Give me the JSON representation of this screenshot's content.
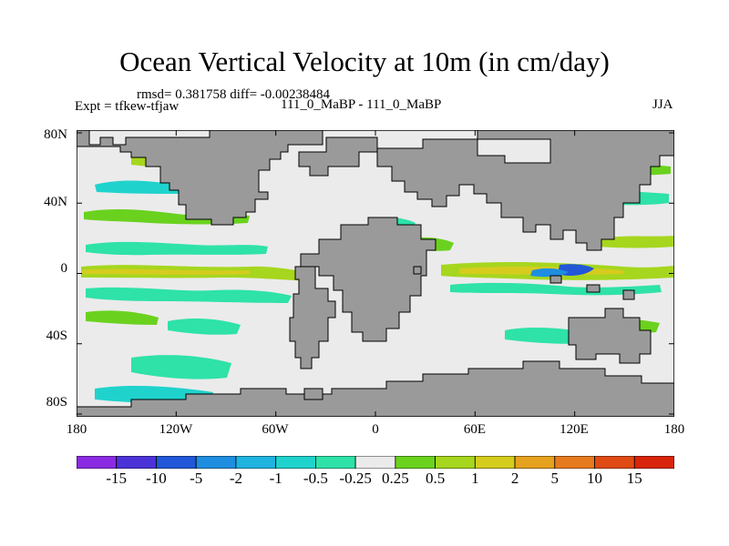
{
  "title": "Ocean Vertical Velocity at 10m (in cm/day)",
  "stats_text": "rmsd= 0.381758 diff= -0.00238484",
  "experiment_text": "Expt = tfkew-tfjaw",
  "runs_text": "111_0_MaBP - 111_0_MaBP",
  "season": "JJA",
  "map": {
    "x_ticks": [
      "180",
      "120W",
      "60W",
      "0",
      "60E",
      "120E",
      "180"
    ],
    "y_ticks": [
      "80N",
      "40N",
      "0",
      "40S",
      "80S"
    ],
    "land_color": "#9a9a9a",
    "ocean_near_zero_color": "#ebebeb"
  },
  "colorbar": {
    "labels": [
      "-15",
      "-10",
      "-5",
      "-2",
      "-1",
      "-0.5",
      "-0.25",
      "0.25",
      "0.5",
      "1",
      "2",
      "5",
      "10",
      "15"
    ],
    "colors": [
      "#8a2be2",
      "#4b33d8",
      "#2257d8",
      "#1f8ee0",
      "#1fb3e0",
      "#1fd3cc",
      "#2ee2a8",
      "#ebebeb",
      "#6ad21e",
      "#a6d61e",
      "#d6cc1e",
      "#e6a21e",
      "#e67a1e",
      "#e04a14",
      "#d8240a"
    ]
  }
}
